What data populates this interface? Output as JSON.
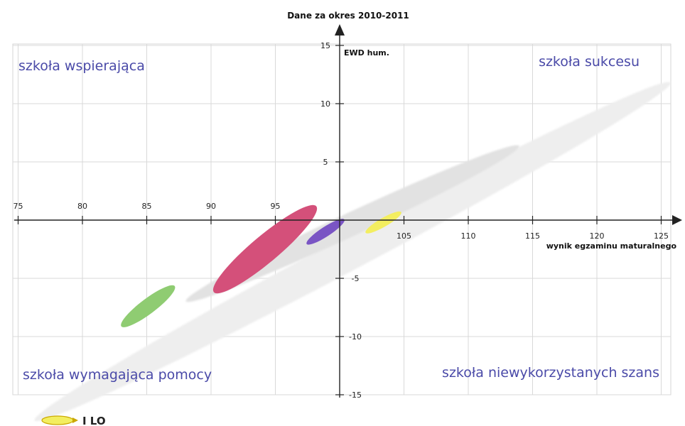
{
  "chart_data": {
    "type": "scatter",
    "title": "Dane za okres 2010-2011",
    "xlabel": "wynik egzaminu maturalnego",
    "ylabel": "EWD hum.",
    "xlim": [
      75,
      125
    ],
    "ylim": [
      -15,
      15
    ],
    "x_ticks": [
      75,
      80,
      85,
      90,
      95,
      105,
      110,
      115,
      120,
      125
    ],
    "y_ticks": [
      15,
      10,
      5,
      -5,
      -10,
      -15
    ],
    "grid": true,
    "quadrants": [
      {
        "label": "szkoła wspierająca",
        "position": "top-left"
      },
      {
        "label": "szkoła sukcesu",
        "position": "top-right"
      },
      {
        "label": "szkoła wymagająca pomocy",
        "position": "bottom-left"
      },
      {
        "label": "szkoła niewykorzystanych szans",
        "position": "bottom-right"
      }
    ],
    "ellipses": [
      {
        "cx": 101,
        "cy": -2.7,
        "rx": 28,
        "ry": 1.45,
        "angle_deg": -28,
        "color": "#eeeeee"
      },
      {
        "cx": 101,
        "cy": -0.3,
        "rx": 14.3,
        "ry": 1.0,
        "angle_deg": -25,
        "color": "#e2e2e2"
      },
      {
        "cx": 85.1,
        "cy": -7.4,
        "rx": 2.6,
        "ry": 0.65,
        "angle_deg": -37,
        "color": "#8fcc72"
      },
      {
        "cx": 94.2,
        "cy": -2.5,
        "rx": 5.2,
        "ry": 1.15,
        "angle_deg": -40,
        "color": "#d4507a"
      },
      {
        "cx": 98.9,
        "cy": -1.0,
        "rx": 1.75,
        "ry": 0.42,
        "angle_deg": -33,
        "color": "#7a55c4"
      },
      {
        "cx": 103.4,
        "cy": -0.2,
        "rx": 1.6,
        "ry": 0.38,
        "angle_deg": -30,
        "color": "#f3ee60"
      }
    ],
    "legend": {
      "position": "bottom-left",
      "entries": [
        {
          "label": "I LO",
          "color": "#f3ee60"
        }
      ]
    }
  }
}
